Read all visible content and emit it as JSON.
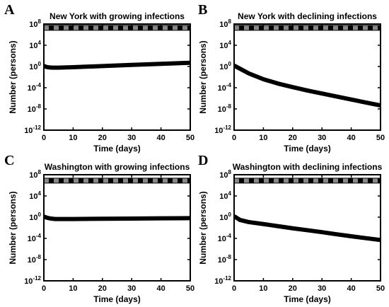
{
  "chart_data": [
    {
      "panel": "A",
      "type": "line",
      "title": "New York with growing infections",
      "xlabel": "Time (days)",
      "ylabel": "Number (persons)",
      "xlim": [
        0,
        50
      ],
      "ylim_log10": [
        -12,
        8
      ],
      "yscale": "log",
      "xticks": [
        "0",
        "10",
        "20",
        "30",
        "40",
        "50"
      ],
      "yticks": [
        "10^-12",
        "10^-8",
        "10^-4",
        "10^0",
        "10^4",
        "10^8"
      ],
      "series": [
        {
          "color": "#000000",
          "style": "solid",
          "x": [
            0,
            30,
            50
          ],
          "y": [
            19500000,
            19500000,
            19500000
          ]
        },
        {
          "color": "#888888",
          "style": "dashed",
          "x": [
            0,
            30,
            50
          ],
          "y": [
            19500000,
            19500000,
            19500000
          ]
        },
        {
          "color": "#000000",
          "style": "solid",
          "x": [
            0,
            1,
            2,
            3,
            4,
            5,
            10,
            20,
            30,
            40,
            50
          ],
          "y": [
            1.2,
            0.8,
            0.65,
            0.6,
            0.6,
            0.6,
            0.75,
            1.2,
            2.0,
            3.2,
            5.0
          ]
        }
      ]
    },
    {
      "panel": "B",
      "type": "line",
      "title": "New York with declining infections",
      "xlabel": "Time (days)",
      "ylabel": "Number (persons)",
      "xlim": [
        0,
        50
      ],
      "ylim_log10": [
        -12,
        8
      ],
      "yscale": "log",
      "xticks": [
        "0",
        "10",
        "20",
        "30",
        "40",
        "50"
      ],
      "yticks": [
        "10^-12",
        "10^-8",
        "10^-4",
        "10^0",
        "10^4",
        "10^8"
      ],
      "series": [
        {
          "color": "#000000",
          "style": "solid",
          "x": [
            0,
            30,
            50
          ],
          "y": [
            19500000,
            19500000,
            19500000
          ]
        },
        {
          "color": "#888888",
          "style": "dashed",
          "x": [
            0,
            30,
            50
          ],
          "y": [
            19500000,
            19500000,
            19500000
          ]
        },
        {
          "color": "#000000",
          "style": "solid",
          "x": [
            0,
            5,
            10,
            15,
            20,
            25,
            30,
            35,
            40,
            45,
            50
          ],
          "y": [
            1.5,
            0.05,
            0.004,
            0.0006,
            0.00013,
            3e-05,
            8e-06,
            2.2e-06,
            6e-07,
            1.6e-07,
            4.5e-08
          ]
        }
      ]
    },
    {
      "panel": "C",
      "type": "line",
      "title": "Washington with growing infections",
      "xlabel": "Time (days)",
      "ylabel": "Number (persons)",
      "xlim": [
        0,
        50
      ],
      "ylim_log10": [
        -12,
        8
      ],
      "yscale": "log",
      "xticks": [
        "0",
        "10",
        "20",
        "30",
        "40",
        "50"
      ],
      "yticks": [
        "10^-12",
        "10^-8",
        "10^-4",
        "10^0",
        "10^4",
        "10^8"
      ],
      "series": [
        {
          "color": "#000000",
          "style": "solid",
          "x": [
            0,
            30,
            50
          ],
          "y": [
            7600000,
            7600000,
            7600000
          ]
        },
        {
          "color": "#888888",
          "style": "dashed",
          "x": [
            0,
            30,
            50
          ],
          "y": [
            7600000,
            7600000,
            7600000
          ]
        },
        {
          "color": "#000000",
          "style": "solid",
          "x": [
            0,
            1,
            2,
            3,
            4,
            5,
            10,
            20,
            30,
            40,
            50
          ],
          "y": [
            1.3,
            0.8,
            0.6,
            0.5,
            0.45,
            0.45,
            0.45,
            0.5,
            0.55,
            0.6,
            0.65
          ]
        }
      ]
    },
    {
      "panel": "D",
      "type": "line",
      "title": "Washington with declining infections",
      "xlabel": "Time (days)",
      "ylabel": "Number (persons)",
      "xlim": [
        0,
        50
      ],
      "ylim_log10": [
        -12,
        8
      ],
      "yscale": "log",
      "xticks": [
        "0",
        "10",
        "20",
        "30",
        "40",
        "50"
      ],
      "yticks": [
        "10^-12",
        "10^-8",
        "10^-4",
        "10^0",
        "10^4",
        "10^8"
      ],
      "series": [
        {
          "color": "#000000",
          "style": "solid",
          "x": [
            0,
            30,
            50
          ],
          "y": [
            7600000,
            7600000,
            7600000
          ]
        },
        {
          "color": "#888888",
          "style": "dashed",
          "x": [
            0,
            30,
            50
          ],
          "y": [
            7600000,
            7600000,
            7600000
          ]
        },
        {
          "color": "#000000",
          "style": "solid",
          "x": [
            0,
            2,
            5,
            10,
            15,
            20,
            25,
            30,
            35,
            40,
            45,
            50
          ],
          "y": [
            1.5,
            0.3,
            0.12,
            0.05,
            0.02,
            0.008,
            0.0035,
            0.0015,
            0.0006,
            0.00025,
            0.00011,
            5e-05
          ]
        }
      ]
    }
  ]
}
